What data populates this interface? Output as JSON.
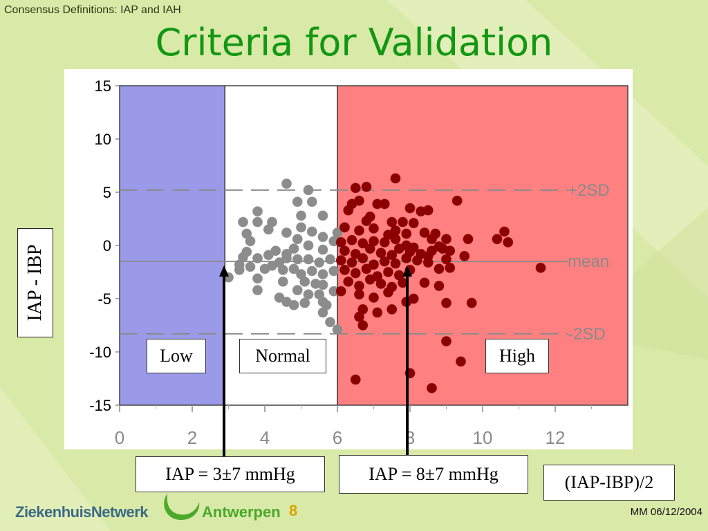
{
  "header": {
    "caption": "Consensus Definitions: IAP and IAH",
    "title": "Criteria for Validation"
  },
  "chart_data": {
    "type": "scatter",
    "xlim": [
      0,
      14
    ],
    "ylim": [
      -15,
      15
    ],
    "xticks": [
      "0",
      "2",
      "4",
      "6",
      "8",
      "10",
      "12"
    ],
    "yticks": [
      "15",
      "10",
      "5",
      "0",
      "-5",
      "-10",
      "-15"
    ],
    "ylabel": "IAP - IBP",
    "xlabel": "(IAP-IBP)/2",
    "lines": {
      "plus2sd": 5.2,
      "mean": -1.5,
      "minus2sd": -8.3
    },
    "line_labels": {
      "plus2sd": "+2SD",
      "mean": "mean",
      "minus2sd": "-2SD"
    },
    "regions": [
      {
        "name": "Low",
        "x": [
          0,
          2.9
        ],
        "color": "#9a9ae8"
      },
      {
        "name": "Normal",
        "x": [
          2.9,
          6.0
        ],
        "color": "#ffffff"
      },
      {
        "name": "High",
        "x": [
          6.0,
          14
        ],
        "color": "#ff8080"
      }
    ],
    "series": [
      {
        "color": "#8c8c8c",
        "points": [
          [
            4.6,
            5.8
          ],
          [
            5.2,
            5.2
          ],
          [
            4.9,
            4.1
          ],
          [
            5.3,
            4.1
          ],
          [
            3.8,
            3.2
          ],
          [
            4.2,
            2.2
          ],
          [
            5.0,
            2.8
          ],
          [
            5.6,
            2.8
          ],
          [
            3.8,
            2.2
          ],
          [
            3.4,
            2.2
          ],
          [
            5.0,
            1.7
          ],
          [
            3.5,
            1.1
          ],
          [
            4.1,
            1.5
          ],
          [
            4.6,
            1.2
          ],
          [
            4.9,
            0.6
          ],
          [
            5.3,
            1.3
          ],
          [
            5.6,
            0.8
          ],
          [
            6.0,
            1.2
          ],
          [
            3.6,
            0.4
          ],
          [
            5.2,
            0.0
          ],
          [
            4.3,
            -0.5
          ],
          [
            4.6,
            -0.8
          ],
          [
            4.8,
            -0.3
          ],
          [
            5.6,
            -0.4
          ],
          [
            5.9,
            0.4
          ],
          [
            3.5,
            -0.6
          ],
          [
            3.4,
            -1.1
          ],
          [
            3.8,
            -1.2
          ],
          [
            4.1,
            -0.9
          ],
          [
            4.4,
            -1.6
          ],
          [
            4.6,
            -1.2
          ],
          [
            4.9,
            -1.3
          ],
          [
            5.2,
            -1.3
          ],
          [
            5.5,
            -1.6
          ],
          [
            5.8,
            -1.3
          ],
          [
            3.3,
            -1.8
          ],
          [
            3.6,
            -2.0
          ],
          [
            4.0,
            -2.2
          ],
          [
            4.2,
            -1.9
          ],
          [
            4.5,
            -2.3
          ],
          [
            4.8,
            -2.2
          ],
          [
            5.0,
            -2.7
          ],
          [
            5.3,
            -2.4
          ],
          [
            5.6,
            -2.7
          ],
          [
            5.9,
            -2.4
          ],
          [
            3.3,
            -2.3
          ],
          [
            3.0,
            -3.0
          ],
          [
            3.8,
            -3.1
          ],
          [
            4.5,
            -3.4
          ],
          [
            5.1,
            -3.4
          ],
          [
            5.4,
            -3.6
          ],
          [
            5.6,
            -3.7
          ],
          [
            4.9,
            -4.2
          ],
          [
            5.2,
            -4.6
          ],
          [
            5.5,
            -4.6
          ],
          [
            3.8,
            -4.2
          ],
          [
            4.4,
            -4.9
          ],
          [
            4.6,
            -5.3
          ],
          [
            5.1,
            -5.4
          ],
          [
            5.6,
            -5.3
          ],
          [
            5.6,
            -6.3
          ],
          [
            5.7,
            -5.6
          ],
          [
            5.9,
            -4.3
          ],
          [
            4.8,
            -5.6
          ],
          [
            5.8,
            -7.2
          ],
          [
            6.0,
            -7.9
          ]
        ]
      },
      {
        "color": "#8b0000",
        "points": [
          [
            6.5,
            5.4
          ],
          [
            6.8,
            5.5
          ],
          [
            7.6,
            6.3
          ],
          [
            6.6,
            4.2
          ],
          [
            6.4,
            3.9
          ],
          [
            7.1,
            3.9
          ],
          [
            7.3,
            3.9
          ],
          [
            8.0,
            3.5
          ],
          [
            8.3,
            3.2
          ],
          [
            8.5,
            3.3
          ],
          [
            9.3,
            4.2
          ],
          [
            6.3,
            3.3
          ],
          [
            6.8,
            2.3
          ],
          [
            6.9,
            2.7
          ],
          [
            7.5,
            2.2
          ],
          [
            7.8,
            2.2
          ],
          [
            8.1,
            2.1
          ],
          [
            6.2,
            1.7
          ],
          [
            6.6,
            1.4
          ],
          [
            7.0,
            1.6
          ],
          [
            7.4,
            1.0
          ],
          [
            7.6,
            1.4
          ],
          [
            7.9,
            1.1
          ],
          [
            8.4,
            1.2
          ],
          [
            8.7,
            1.1
          ],
          [
            6.1,
            0.3
          ],
          [
            6.4,
            0.5
          ],
          [
            6.7,
            0.2
          ],
          [
            7.0,
            0.4
          ],
          [
            7.3,
            0.3
          ],
          [
            7.6,
            0.6
          ],
          [
            7.9,
            0.0
          ],
          [
            8.1,
            -0.2
          ],
          [
            6.2,
            -0.5
          ],
          [
            6.5,
            -0.8
          ],
          [
            6.9,
            -0.3
          ],
          [
            7.2,
            -0.7
          ],
          [
            7.5,
            -0.9
          ],
          [
            7.7,
            -0.3
          ],
          [
            8.0,
            -0.6
          ],
          [
            8.3,
            -0.8
          ],
          [
            8.6,
            -0.5
          ],
          [
            8.9,
            -0.3
          ],
          [
            6.1,
            -1.4
          ],
          [
            6.4,
            -1.6
          ],
          [
            6.7,
            -1.2
          ],
          [
            7.0,
            -1.8
          ],
          [
            7.3,
            -1.5
          ],
          [
            7.6,
            -1.7
          ],
          [
            7.9,
            -1.2
          ],
          [
            8.2,
            -1.4
          ],
          [
            8.5,
            -1.6
          ],
          [
            6.2,
            -2.3
          ],
          [
            6.5,
            -2.6
          ],
          [
            6.8,
            -2.2
          ],
          [
            7.1,
            -2.9
          ],
          [
            7.4,
            -2.5
          ],
          [
            7.7,
            -2.8
          ],
          [
            8.0,
            -2.3
          ],
          [
            6.3,
            -3.4
          ],
          [
            6.6,
            -3.8
          ],
          [
            6.9,
            -3.2
          ],
          [
            7.2,
            -3.6
          ],
          [
            7.5,
            -3.9
          ],
          [
            7.8,
            -3.5
          ],
          [
            6.1,
            -4.3
          ],
          [
            6.6,
            -4.6
          ],
          [
            7.0,
            -4.9
          ],
          [
            7.4,
            -4.4
          ],
          [
            7.9,
            -5.3
          ],
          [
            8.1,
            -5.0
          ],
          [
            6.7,
            -6.0
          ],
          [
            7.1,
            -6.3
          ],
          [
            7.5,
            -6.0
          ],
          [
            6.6,
            -6.7
          ],
          [
            6.7,
            -7.5
          ],
          [
            6.5,
            -12.6
          ],
          [
            8.0,
            -12.0
          ],
          [
            8.6,
            -13.4
          ],
          [
            8.5,
            -1.0
          ],
          [
            8.8,
            -2.2
          ],
          [
            9.0,
            -1.3
          ],
          [
            9.1,
            -2.1
          ],
          [
            9.5,
            -1.0
          ],
          [
            9.6,
            0.6
          ],
          [
            10.4,
            0.6
          ],
          [
            10.6,
            1.3
          ],
          [
            10.7,
            0.3
          ],
          [
            11.6,
            -2.1
          ],
          [
            8.6,
            0.6
          ],
          [
            8.8,
            -0.1
          ],
          [
            9.0,
            0.6
          ],
          [
            9.1,
            -0.5
          ],
          [
            8.8,
            -3.8
          ],
          [
            9.0,
            -5.4
          ],
          [
            9.7,
            -5.4
          ],
          [
            9.0,
            -9.0
          ],
          [
            9.4,
            -10.9
          ],
          [
            8.4,
            -3.5
          ]
        ]
      }
    ]
  },
  "labels": {
    "low": "Low",
    "normal": "Normal",
    "high": "High",
    "iap_low": "IAP = 3±7 mmHg",
    "iap_high": "IAP = 8±7 mmHg",
    "xlabel_box": "(IAP-IBP)/2",
    "ylabel_box": "IAP - IBP"
  },
  "footer": {
    "logo": "ZiekenhuisNetwerk",
    "city": "Antwerpen",
    "page": "8",
    "date": "MM 06/12/2004"
  }
}
